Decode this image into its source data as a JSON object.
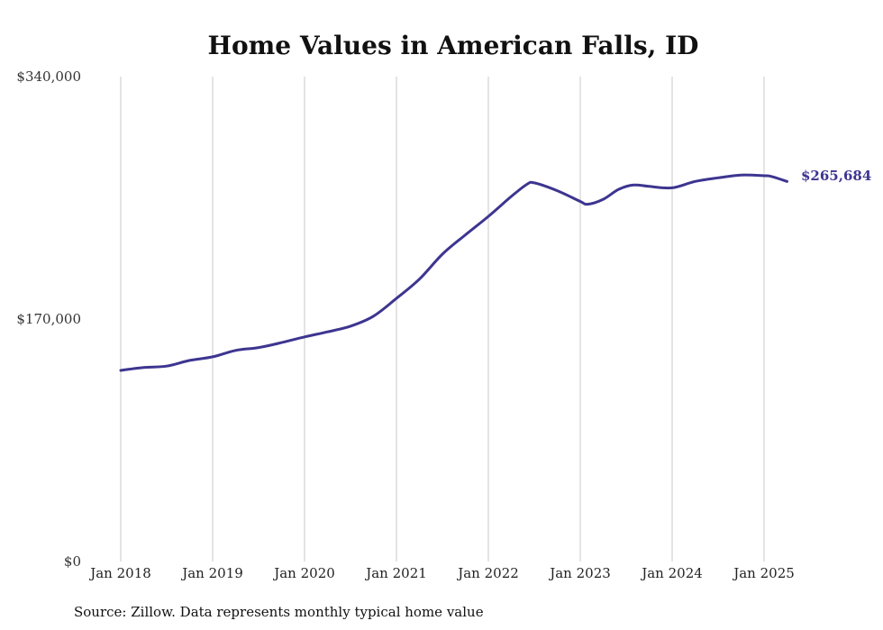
{
  "chart_data": {
    "type": "line",
    "title": "Home Values in American Falls, ID",
    "source": "Source: Zillow. Data represents monthly typical home value",
    "x_tick_labels": [
      "Jan 2018",
      "Jan 2019",
      "Jan 2020",
      "Jan 2021",
      "Jan 2022",
      "Jan 2023",
      "Jan 2024",
      "Jan 2025"
    ],
    "x_tick_years": [
      2018,
      2019,
      2020,
      2021,
      2022,
      2023,
      2024,
      2025
    ],
    "y_tick_labels": [
      "$0",
      "$170,000",
      "$340,000"
    ],
    "y_ticks": [
      0,
      170000,
      340000
    ],
    "ylim": [
      0,
      340000
    ],
    "xlim": [
      2017.8,
      2025.5
    ],
    "grid": "vertical",
    "line_color": "#3d3590",
    "end_label": "$265,684",
    "series": [
      {
        "x": [
          2018.0,
          2018.25,
          2018.5,
          2018.75,
          2019.0,
          2019.25,
          2019.5,
          2019.75,
          2020.0,
          2020.25,
          2020.5,
          2020.75,
          2021.0,
          2021.25,
          2021.5,
          2021.75,
          2022.0,
          2022.25,
          2022.42,
          2022.5,
          2022.75,
          2023.0,
          2023.08,
          2023.25,
          2023.42,
          2023.58,
          2023.75,
          2024.0,
          2024.25,
          2024.5,
          2024.75,
          2025.0,
          2025.08,
          2025.25
        ],
        "y": [
          134000,
          136000,
          137000,
          141000,
          143500,
          148000,
          150000,
          153500,
          157500,
          161000,
          165000,
          172000,
          184500,
          198000,
          215500,
          229000,
          242000,
          256000,
          264500,
          265500,
          260000,
          252500,
          250500,
          254000,
          261000,
          264000,
          263000,
          262000,
          266500,
          269000,
          271000,
          270500,
          270000,
          266500
        ]
      }
    ]
  }
}
